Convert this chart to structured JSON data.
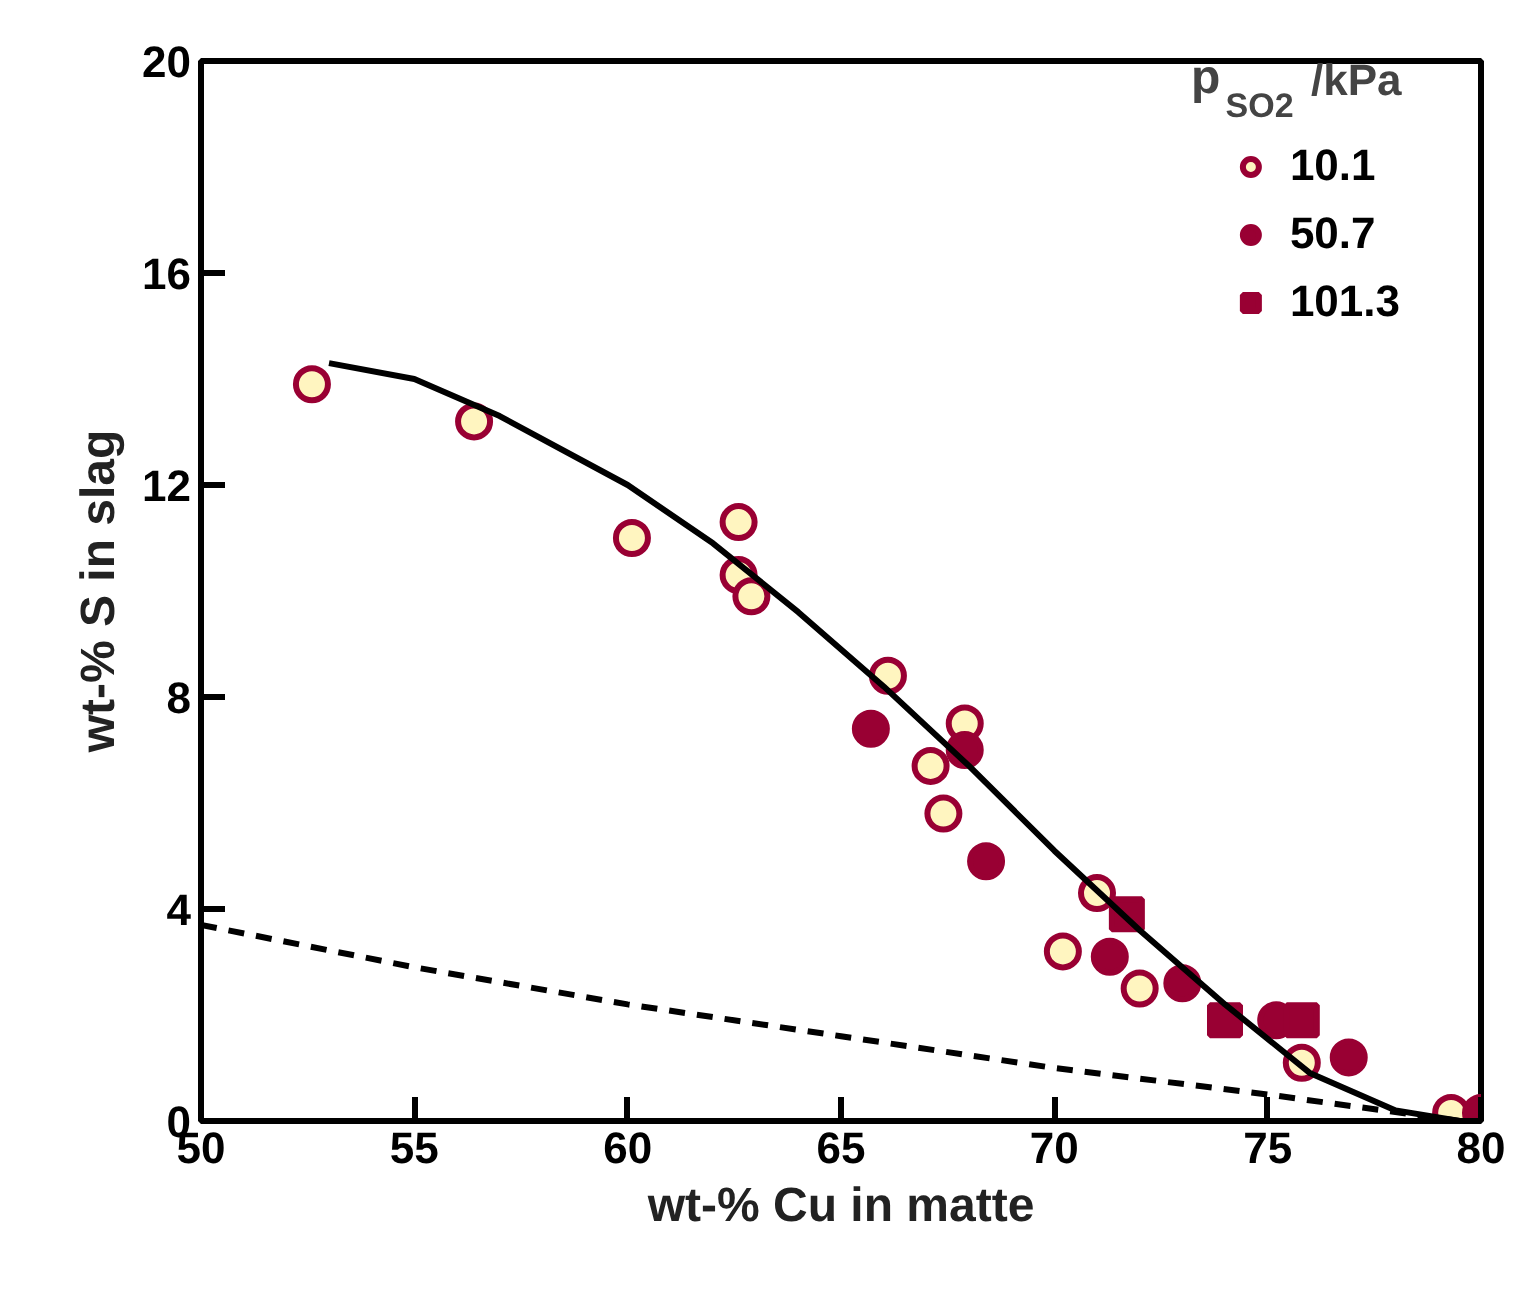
{
  "chart_data": {
    "type": "scatter",
    "xlabel": "wt-% Cu in matte",
    "ylabel": "wt-% S in slag",
    "legend_title": "p$_{SO2}$ /kPa",
    "xlim": [
      50,
      80
    ],
    "ylim": [
      0,
      20
    ],
    "xticks": [
      50,
      55,
      60,
      65,
      70,
      75,
      80
    ],
    "yticks": [
      0,
      4,
      8,
      12,
      16,
      20
    ],
    "grid": false,
    "legend": "top right",
    "series": [
      {
        "name": "10.1",
        "color": "#fff5c0",
        "marker": "circle",
        "x": [
          52.6,
          56.4,
          60.1,
          62.6,
          62.6,
          62.9,
          66.1,
          67.1,
          67.4,
          67.9,
          71.0,
          70.2,
          72.0,
          75.8,
          79.3
        ],
        "values": [
          13.9,
          13.2,
          11.0,
          11.3,
          10.3,
          9.9,
          8.4,
          6.7,
          5.8,
          7.5,
          4.3,
          3.2,
          2.5,
          1.1,
          0.15
        ]
      },
      {
        "name": "50.7",
        "color": "#990033",
        "marker": "circle",
        "x": [
          65.7,
          67.9,
          68.4,
          71.3,
          73.0,
          75.2,
          76.9,
          80.0
        ],
        "values": [
          7.4,
          7.0,
          4.9,
          3.1,
          2.6,
          1.9,
          1.2,
          0.15
        ]
      },
      {
        "name": "101.3",
        "color": "#990033",
        "marker": "square",
        "x": [
          71.7,
          74.0,
          75.8
        ],
        "values": [
          3.9,
          1.9,
          1.9
        ]
      },
      {
        "type": "line",
        "color": "#000000",
        "line_style": "solid",
        "x": [
          53,
          55,
          57,
          60,
          62,
          64,
          66,
          68,
          70,
          72,
          74,
          76,
          78,
          79.5
        ],
        "values": [
          14.3,
          14.0,
          13.3,
          12.0,
          10.9,
          9.6,
          8.2,
          6.7,
          5.1,
          3.6,
          2.2,
          0.9,
          0.2,
          0
        ]
      },
      {
        "type": "line",
        "color": "#000000",
        "line_style": "dashed",
        "x": [
          50,
          55,
          60,
          65,
          70,
          75,
          79.5
        ],
        "values": [
          3.7,
          2.9,
          2.2,
          1.6,
          1.0,
          0.5,
          0
        ]
      }
    ]
  }
}
